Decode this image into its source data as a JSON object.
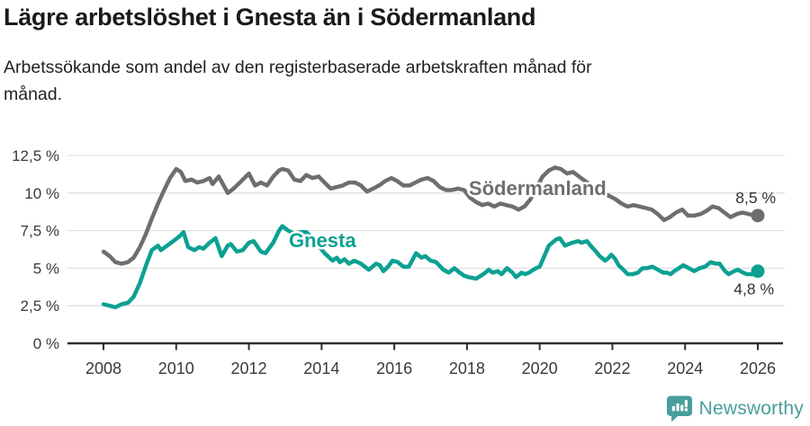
{
  "header": {
    "title": "Lägre arbetslöshet i Gnesta än i Södermanland",
    "subtitle": "Arbetssökande som andel av den registerbaserade arbetskraften månad för månad."
  },
  "footer": {
    "brand": "Newsworthy",
    "logo_icon": "bar-chart-speech-bubble-icon"
  },
  "colors": {
    "gnesta": "#0ca192",
    "sodermanland": "#6e6e6e",
    "grid": "#e1e1e1",
    "axis": "#2e2e2e",
    "tick_text": "#3a3a3a",
    "value_text": "#333333",
    "logo": "#489e9a",
    "background": "#ffffff"
  },
  "chart_data": {
    "type": "line",
    "title": "Lägre arbetslöshet i Gnesta än i Södermanland",
    "subtitle": "Arbetssökande som andel av den registerbaserade arbetskraften månad för månad.",
    "xlabel": "",
    "ylabel": "",
    "grid": true,
    "legend_position": "inline-labels",
    "x_axis": {
      "ticks": [
        2008,
        2010,
        2012,
        2014,
        2016,
        2018,
        2020,
        2022,
        2024,
        2026
      ],
      "tick_labels": [
        "2008",
        "2010",
        "2012",
        "2014",
        "2016",
        "2018",
        "2020",
        "2022",
        "2024",
        "2026"
      ],
      "range": [
        2007.0,
        2026.7
      ]
    },
    "y_axis": {
      "ticks": [
        0,
        2.5,
        5,
        7.5,
        10,
        12.5
      ],
      "tick_labels": [
        "0 %",
        "2,5 %",
        "5 %",
        "7,5 %",
        "10 %",
        "12,5 %"
      ],
      "range": [
        0,
        12.5
      ]
    },
    "series": [
      {
        "name": "Södermanland",
        "color_key": "sodermanland",
        "label_pos": {
          "x": 2018.05,
          "y": 9.87
        },
        "end_label": {
          "text": "8,5 %",
          "dx": 20,
          "dy": -14
        },
        "end_value": 8.5,
        "points": [
          [
            2008.0,
            6.1
          ],
          [
            2008.17,
            5.8
          ],
          [
            2008.33,
            5.4
          ],
          [
            2008.5,
            5.3
          ],
          [
            2008.67,
            5.4
          ],
          [
            2008.83,
            5.7
          ],
          [
            2009.0,
            6.4
          ],
          [
            2009.17,
            7.3
          ],
          [
            2009.33,
            8.3
          ],
          [
            2009.5,
            9.3
          ],
          [
            2009.67,
            10.2
          ],
          [
            2009.83,
            11.0
          ],
          [
            2010.0,
            11.6
          ],
          [
            2010.13,
            11.4
          ],
          [
            2010.25,
            10.8
          ],
          [
            2010.42,
            10.9
          ],
          [
            2010.58,
            10.7
          ],
          [
            2010.75,
            10.8
          ],
          [
            2010.92,
            11.0
          ],
          [
            2011.0,
            10.6
          ],
          [
            2011.17,
            11.1
          ],
          [
            2011.33,
            10.4
          ],
          [
            2011.42,
            10.0
          ],
          [
            2011.58,
            10.3
          ],
          [
            2011.75,
            10.7
          ],
          [
            2011.92,
            11.1
          ],
          [
            2012.0,
            11.3
          ],
          [
            2012.17,
            10.5
          ],
          [
            2012.33,
            10.7
          ],
          [
            2012.5,
            10.5
          ],
          [
            2012.67,
            11.1
          ],
          [
            2012.83,
            11.5
          ],
          [
            2012.92,
            11.6
          ],
          [
            2013.08,
            11.5
          ],
          [
            2013.25,
            10.9
          ],
          [
            2013.42,
            10.8
          ],
          [
            2013.58,
            11.2
          ],
          [
            2013.75,
            11.0
          ],
          [
            2013.92,
            11.1
          ],
          [
            2014.08,
            10.7
          ],
          [
            2014.25,
            10.3
          ],
          [
            2014.42,
            10.4
          ],
          [
            2014.58,
            10.5
          ],
          [
            2014.75,
            10.7
          ],
          [
            2014.92,
            10.7
          ],
          [
            2015.08,
            10.5
          ],
          [
            2015.25,
            10.1
          ],
          [
            2015.42,
            10.3
          ],
          [
            2015.58,
            10.5
          ],
          [
            2015.75,
            10.8
          ],
          [
            2015.92,
            11.0
          ],
          [
            2016.08,
            10.8
          ],
          [
            2016.25,
            10.5
          ],
          [
            2016.42,
            10.5
          ],
          [
            2016.58,
            10.7
          ],
          [
            2016.75,
            10.9
          ],
          [
            2016.92,
            11.0
          ],
          [
            2017.08,
            10.8
          ],
          [
            2017.25,
            10.4
          ],
          [
            2017.42,
            10.2
          ],
          [
            2017.58,
            10.2
          ],
          [
            2017.75,
            10.3
          ],
          [
            2017.92,
            10.2
          ],
          [
            2018.08,
            9.7
          ],
          [
            2018.25,
            9.4
          ],
          [
            2018.42,
            9.2
          ],
          [
            2018.58,
            9.3
          ],
          [
            2018.75,
            9.1
          ],
          [
            2018.92,
            9.3
          ],
          [
            2019.08,
            9.2
          ],
          [
            2019.25,
            9.1
          ],
          [
            2019.42,
            8.9
          ],
          [
            2019.58,
            9.1
          ],
          [
            2019.75,
            9.6
          ],
          [
            2019.92,
            10.4
          ],
          [
            2020.08,
            11.1
          ],
          [
            2020.25,
            11.5
          ],
          [
            2020.42,
            11.7
          ],
          [
            2020.58,
            11.6
          ],
          [
            2020.75,
            11.3
          ],
          [
            2020.92,
            11.4
          ],
          [
            2021.08,
            11.1
          ],
          [
            2021.25,
            10.8
          ],
          [
            2021.42,
            10.5
          ],
          [
            2021.58,
            10.2
          ],
          [
            2021.75,
            10.0
          ],
          [
            2021.92,
            9.8
          ],
          [
            2022.08,
            9.6
          ],
          [
            2022.25,
            9.3
          ],
          [
            2022.42,
            9.1
          ],
          [
            2022.58,
            9.2
          ],
          [
            2022.75,
            9.1
          ],
          [
            2022.92,
            9.0
          ],
          [
            2023.08,
            8.9
          ],
          [
            2023.25,
            8.6
          ],
          [
            2023.42,
            8.2
          ],
          [
            2023.58,
            8.4
          ],
          [
            2023.75,
            8.7
          ],
          [
            2023.92,
            8.9
          ],
          [
            2024.08,
            8.5
          ],
          [
            2024.25,
            8.5
          ],
          [
            2024.42,
            8.6
          ],
          [
            2024.58,
            8.8
          ],
          [
            2024.75,
            9.1
          ],
          [
            2024.92,
            9.0
          ],
          [
            2025.08,
            8.7
          ],
          [
            2025.25,
            8.4
          ],
          [
            2025.42,
            8.6
          ],
          [
            2025.58,
            8.7
          ],
          [
            2025.75,
            8.6
          ],
          [
            2025.92,
            8.5
          ],
          [
            2026.0,
            8.5
          ]
        ]
      },
      {
        "name": "Gnesta",
        "color_key": "gnesta",
        "label_pos": {
          "x": 2013.1,
          "y": 6.4
        },
        "end_label": {
          "text": "4,8 %",
          "dx": 18,
          "dy": 26
        },
        "end_value": 4.8,
        "points": [
          [
            2008.0,
            2.6
          ],
          [
            2008.17,
            2.5
          ],
          [
            2008.33,
            2.4
          ],
          [
            2008.5,
            2.6
          ],
          [
            2008.67,
            2.7
          ],
          [
            2008.83,
            3.1
          ],
          [
            2009.0,
            4.0
          ],
          [
            2009.17,
            5.2
          ],
          [
            2009.33,
            6.2
          ],
          [
            2009.5,
            6.5
          ],
          [
            2009.58,
            6.2
          ],
          [
            2009.75,
            6.5
          ],
          [
            2009.92,
            6.8
          ],
          [
            2010.08,
            7.1
          ],
          [
            2010.2,
            7.4
          ],
          [
            2010.33,
            6.4
          ],
          [
            2010.5,
            6.2
          ],
          [
            2010.63,
            6.4
          ],
          [
            2010.75,
            6.3
          ],
          [
            2010.92,
            6.7
          ],
          [
            2011.08,
            7.0
          ],
          [
            2011.25,
            5.8
          ],
          [
            2011.42,
            6.5
          ],
          [
            2011.5,
            6.6
          ],
          [
            2011.67,
            6.1
          ],
          [
            2011.83,
            6.2
          ],
          [
            2012.0,
            6.7
          ],
          [
            2012.13,
            6.8
          ],
          [
            2012.33,
            6.1
          ],
          [
            2012.46,
            6.0
          ],
          [
            2012.67,
            6.7
          ],
          [
            2012.83,
            7.5
          ],
          [
            2012.92,
            7.8
          ],
          [
            2013.08,
            7.5
          ],
          [
            2013.25,
            7.3
          ],
          [
            2013.42,
            7.4
          ],
          [
            2013.58,
            7.4
          ],
          [
            2013.75,
            7.0
          ],
          [
            2013.92,
            6.5
          ],
          [
            2014.08,
            6.0
          ],
          [
            2014.17,
            5.8
          ],
          [
            2014.3,
            5.5
          ],
          [
            2014.42,
            5.7
          ],
          [
            2014.5,
            5.4
          ],
          [
            2014.63,
            5.6
          ],
          [
            2014.75,
            5.3
          ],
          [
            2014.9,
            5.5
          ],
          [
            2015.08,
            5.3
          ],
          [
            2015.3,
            4.9
          ],
          [
            2015.5,
            5.3
          ],
          [
            2015.6,
            5.2
          ],
          [
            2015.7,
            4.8
          ],
          [
            2015.83,
            5.1
          ],
          [
            2015.95,
            5.5
          ],
          [
            2016.1,
            5.4
          ],
          [
            2016.25,
            5.1
          ],
          [
            2016.4,
            5.1
          ],
          [
            2016.6,
            6.0
          ],
          [
            2016.75,
            5.7
          ],
          [
            2016.85,
            5.8
          ],
          [
            2017.0,
            5.5
          ],
          [
            2017.15,
            5.4
          ],
          [
            2017.35,
            4.9
          ],
          [
            2017.5,
            4.7
          ],
          [
            2017.65,
            5.0
          ],
          [
            2017.8,
            4.7
          ],
          [
            2017.92,
            4.5
          ],
          [
            2018.05,
            4.4
          ],
          [
            2018.25,
            4.3
          ],
          [
            2018.45,
            4.6
          ],
          [
            2018.6,
            4.9
          ],
          [
            2018.7,
            4.7
          ],
          [
            2018.85,
            4.8
          ],
          [
            2018.95,
            4.6
          ],
          [
            2019.1,
            5.0
          ],
          [
            2019.25,
            4.7
          ],
          [
            2019.35,
            4.4
          ],
          [
            2019.5,
            4.7
          ],
          [
            2019.6,
            4.6
          ],
          [
            2019.7,
            4.7
          ],
          [
            2019.9,
            5.0
          ],
          [
            2020.0,
            5.1
          ],
          [
            2020.25,
            6.5
          ],
          [
            2020.45,
            6.9
          ],
          [
            2020.55,
            7.0
          ],
          [
            2020.7,
            6.5
          ],
          [
            2020.8,
            6.6
          ],
          [
            2020.9,
            6.7
          ],
          [
            2021.05,
            6.8
          ],
          [
            2021.15,
            6.7
          ],
          [
            2021.3,
            6.8
          ],
          [
            2021.4,
            6.5
          ],
          [
            2021.55,
            6.1
          ],
          [
            2021.65,
            5.8
          ],
          [
            2021.8,
            5.5
          ],
          [
            2021.9,
            5.7
          ],
          [
            2021.97,
            5.9
          ],
          [
            2022.08,
            5.6
          ],
          [
            2022.17,
            5.2
          ],
          [
            2022.3,
            4.9
          ],
          [
            2022.42,
            4.6
          ],
          [
            2022.55,
            4.6
          ],
          [
            2022.7,
            4.7
          ],
          [
            2022.83,
            5.0
          ],
          [
            2022.95,
            5.0
          ],
          [
            2023.1,
            5.1
          ],
          [
            2023.25,
            4.9
          ],
          [
            2023.4,
            4.7
          ],
          [
            2023.5,
            4.7
          ],
          [
            2023.6,
            4.6
          ],
          [
            2023.7,
            4.8
          ],
          [
            2023.83,
            5.0
          ],
          [
            2023.95,
            5.2
          ],
          [
            2024.1,
            5.0
          ],
          [
            2024.25,
            4.8
          ],
          [
            2024.4,
            5.0
          ],
          [
            2024.55,
            5.1
          ],
          [
            2024.7,
            5.4
          ],
          [
            2024.85,
            5.3
          ],
          [
            2024.95,
            5.3
          ],
          [
            2025.1,
            4.8
          ],
          [
            2025.2,
            4.6
          ],
          [
            2025.35,
            4.8
          ],
          [
            2025.45,
            4.9
          ],
          [
            2025.6,
            4.7
          ],
          [
            2025.7,
            4.6
          ],
          [
            2025.85,
            4.6
          ],
          [
            2026.0,
            4.8
          ]
        ]
      }
    ]
  }
}
